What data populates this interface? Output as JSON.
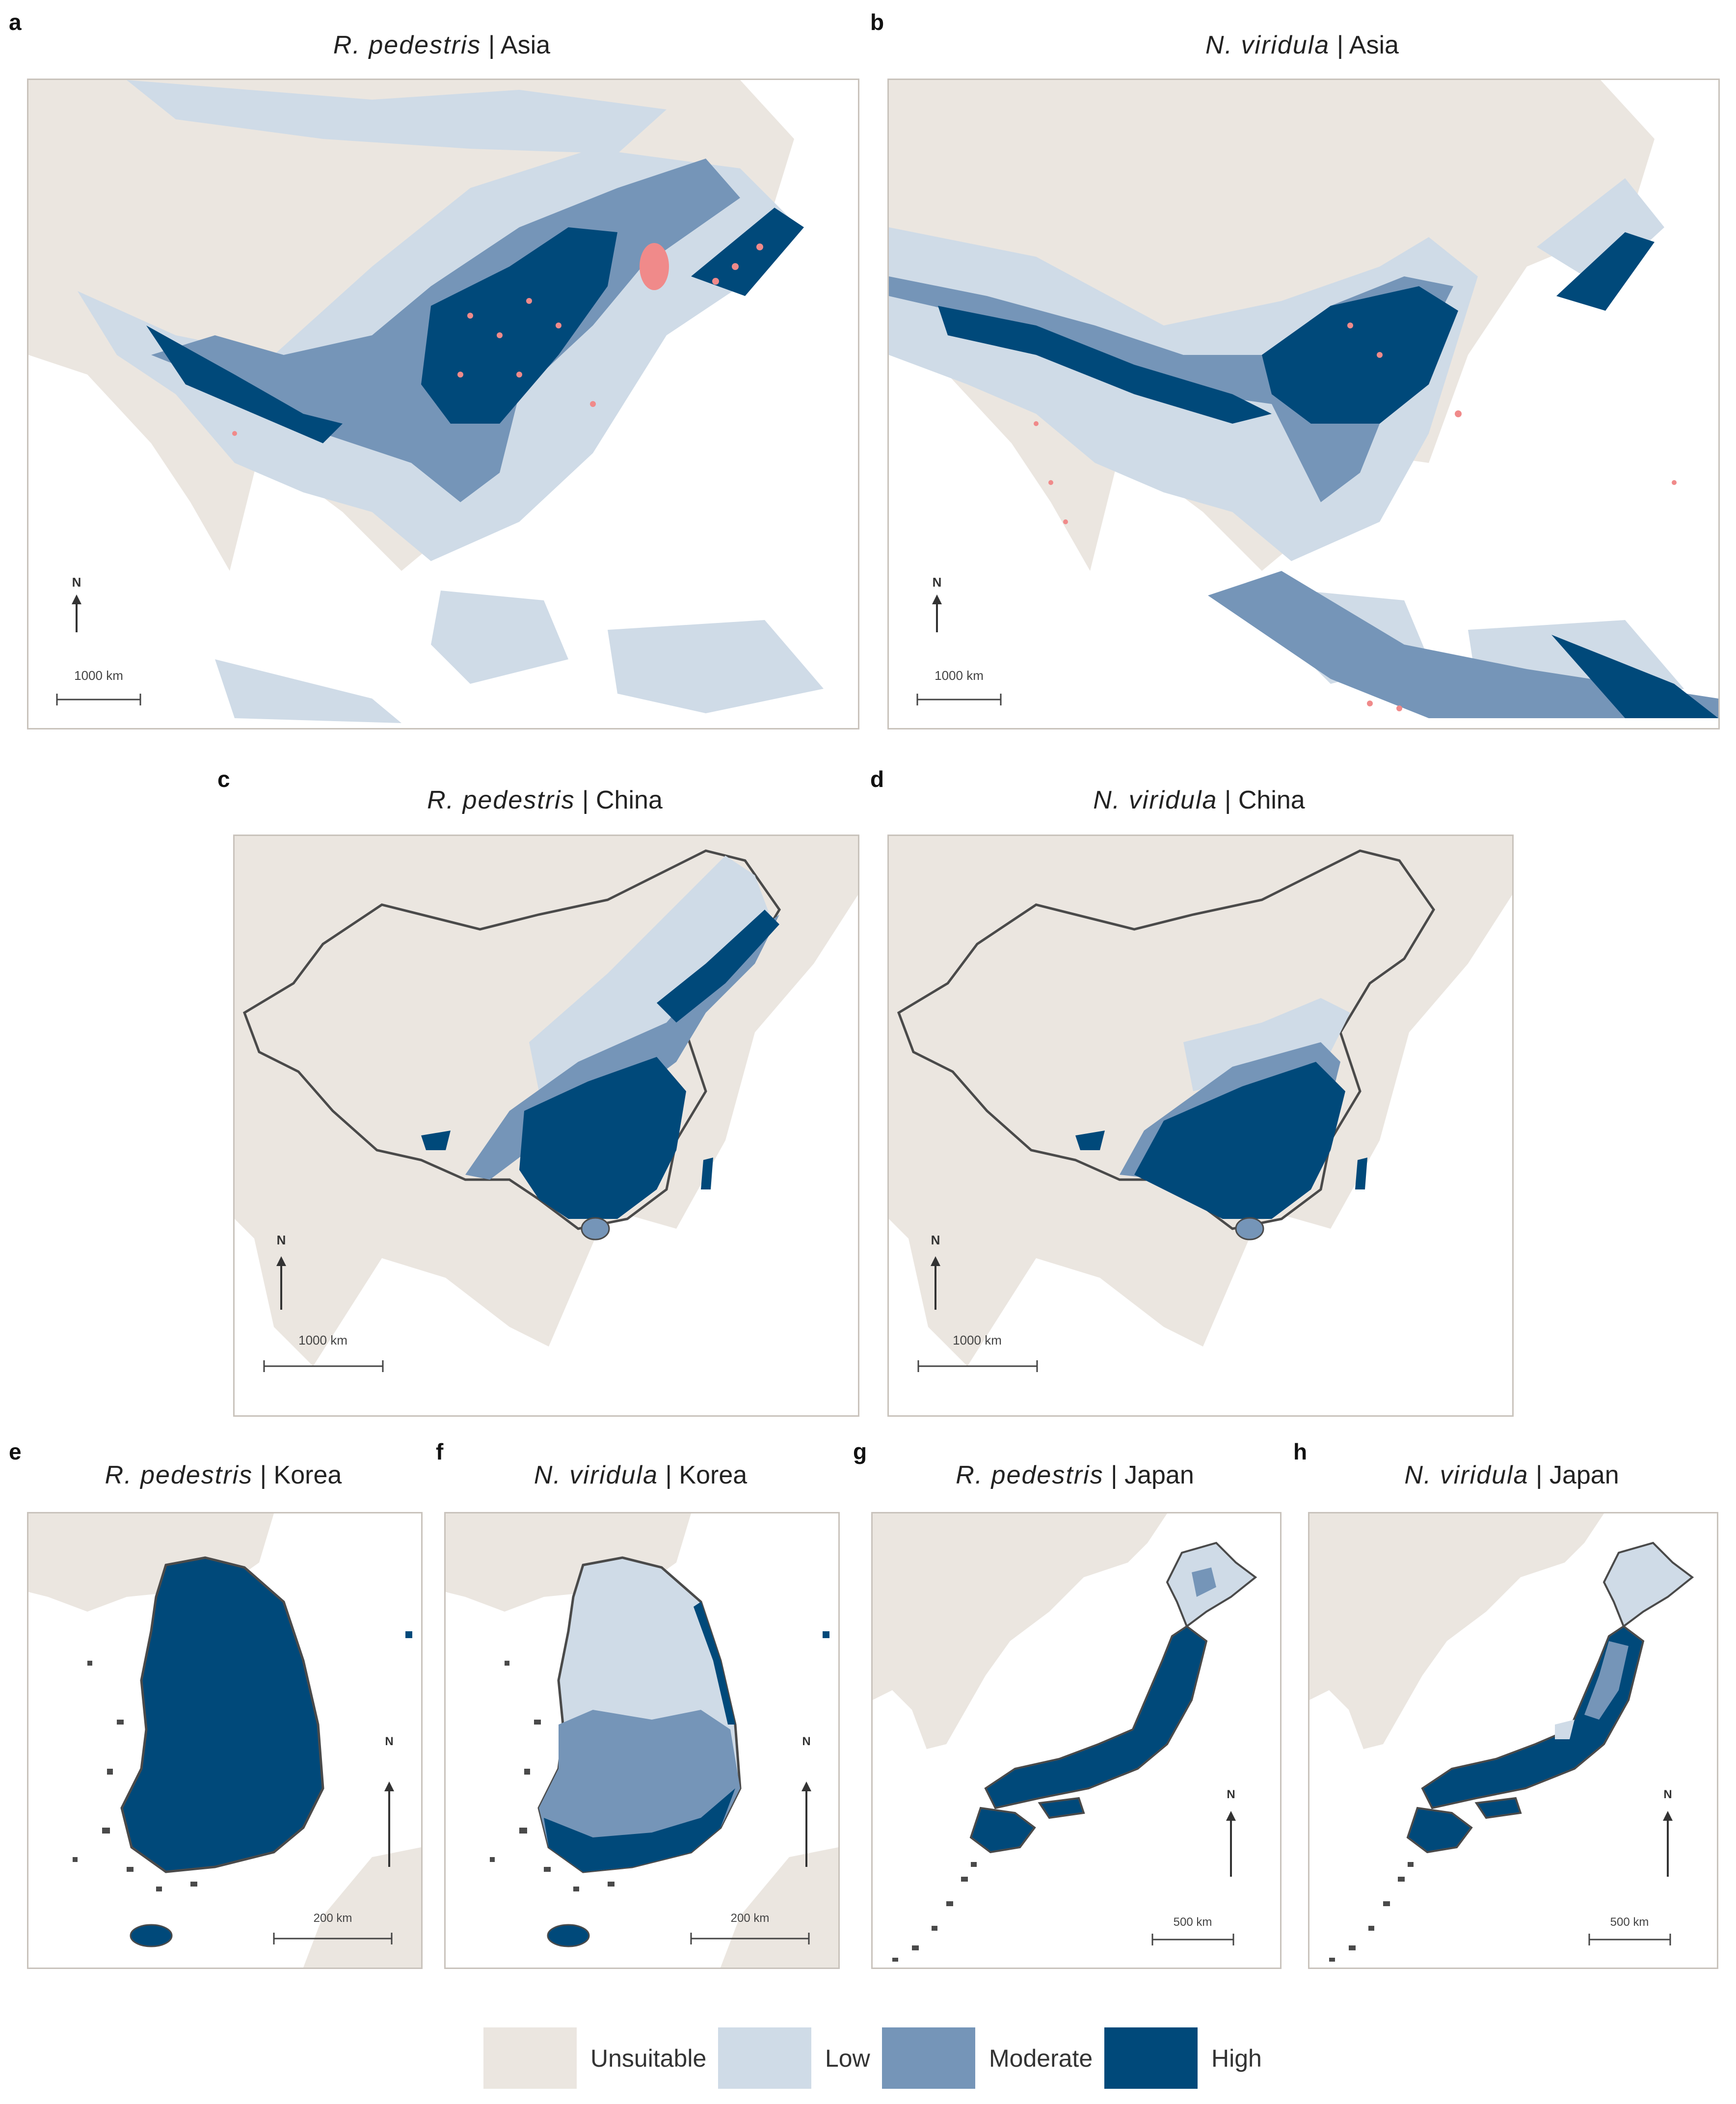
{
  "panels": [
    {
      "letter": "a",
      "species": "R. pedestris",
      "region": "Asia",
      "scale": "1000 km",
      "north": "N"
    },
    {
      "letter": "b",
      "species": "N. viridula",
      "region": "Asia",
      "scale": "1000 km",
      "north": "N"
    },
    {
      "letter": "c",
      "species": "R. pedestris",
      "region": "China",
      "scale": "1000 km",
      "north": "N"
    },
    {
      "letter": "d",
      "species": "N. viridula",
      "region": "China",
      "scale": "1000 km",
      "north": "N"
    },
    {
      "letter": "e",
      "species": "R. pedestris",
      "region": "Korea",
      "scale": "200 km",
      "north": "N"
    },
    {
      "letter": "f",
      "species": "N. viridula",
      "region": "Korea",
      "scale": "200 km",
      "north": "N"
    },
    {
      "letter": "g",
      "species": "R. pedestris",
      "region": "Japan",
      "scale": "500 km",
      "north": "N"
    },
    {
      "letter": "h",
      "species": "N. viridula",
      "region": "Japan",
      "scale": "500 km",
      "north": "N"
    }
  ],
  "title_separator": "|",
  "legend": [
    {
      "label": "Unsuitable",
      "color": "#ebe6e0"
    },
    {
      "label": "Low",
      "color": "#cfdbe7"
    },
    {
      "label": "Moderate",
      "color": "#7595b8"
    },
    {
      "label": "High",
      "color": "#00497a"
    }
  ],
  "colors": {
    "occurrence": "#f08a8a",
    "border": "#4a4a4a",
    "ocean": "#ffffff"
  }
}
